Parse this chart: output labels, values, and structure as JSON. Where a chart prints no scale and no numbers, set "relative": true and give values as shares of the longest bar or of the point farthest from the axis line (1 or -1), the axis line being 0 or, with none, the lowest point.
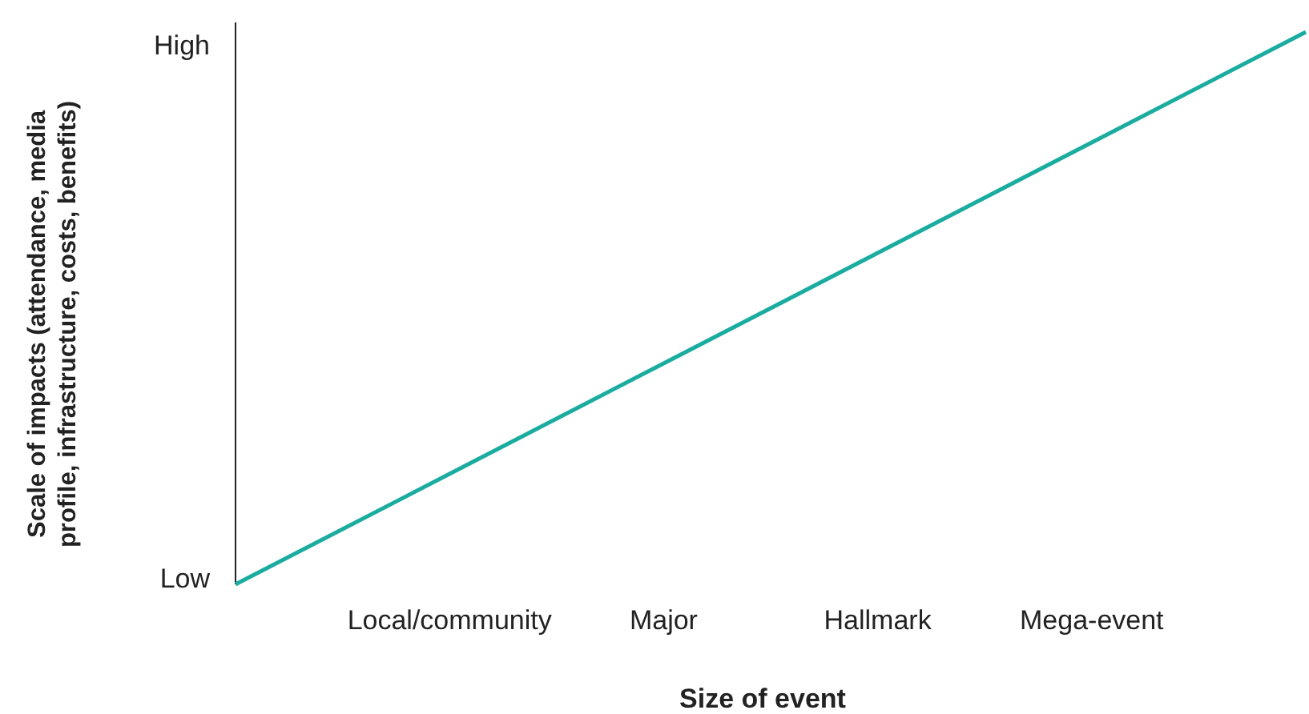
{
  "chart_data": {
    "type": "line",
    "xlabel": "Size of event",
    "ylabel": "Scale of impacts (attendance, media profile, infrastructure, costs, benefits)",
    "categories": [
      null,
      "Local/community",
      "Major",
      "Hallmark",
      "Mega-event",
      null
    ],
    "relative": true,
    "annotations": [
      "Low",
      "High"
    ],
    "series": [
      {
        "color": "#1aaca0",
        "values": [
          0,
          0.2,
          0.4,
          0.6,
          0.8,
          1
        ]
      }
    ],
    "marker": "none",
    "line_style": "solid"
  }
}
